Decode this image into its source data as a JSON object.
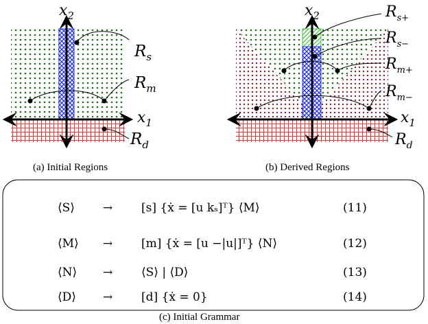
{
  "panel_a": {
    "caption": "(a)  Initial Regions",
    "x_axis_label": "x",
    "x_axis_sub": "1",
    "y_axis_label": "x",
    "y_axis_sub": "2",
    "region_labels": [
      {
        "main": "R",
        "sub": "s"
      },
      {
        "main": "R",
        "sub": "m"
      },
      {
        "main": "R",
        "sub": "d"
      }
    ]
  },
  "panel_b": {
    "caption": "(b)  Derived Regions",
    "x_axis_label": "x",
    "x_axis_sub": "1",
    "y_axis_label": "x",
    "y_axis_sub": "2",
    "region_labels": [
      {
        "main": "R",
        "sub": "s+"
      },
      {
        "main": "R",
        "sub": "s−"
      },
      {
        "main": "R",
        "sub": "m+"
      },
      {
        "main": "R",
        "sub": "m−"
      },
      {
        "main": "R",
        "sub": "d"
      }
    ]
  },
  "grammar": {
    "caption": "(c)  Initial Grammar",
    "rules": [
      {
        "lhs": "⟨S⟩",
        "arrow": "→",
        "rhs": "[s] {ẋ = [u    kₛ]ᵀ} ⟨M⟩",
        "num": "(11)"
      },
      {
        "lhs": "⟨M⟩",
        "arrow": "→",
        "rhs": "[m] {ẋ = [u    −|u|]ᵀ} ⟨N⟩",
        "num": "(12)"
      },
      {
        "lhs": "⟨N⟩",
        "arrow": "→",
        "rhs": "⟨S⟩ | ⟨D⟩",
        "num": "(13)"
      },
      {
        "lhs": "⟨D⟩",
        "arrow": "→",
        "rhs": "[d] {ẋ = 0}",
        "num": "(14)"
      }
    ]
  },
  "colors": {
    "green_dots": "#1e6b1e",
    "blue_hatch": "#2230e0",
    "red_grid": "#e03030",
    "maroon_dots": "#8a2030",
    "light_green_hatch": "#3cc43c"
  }
}
